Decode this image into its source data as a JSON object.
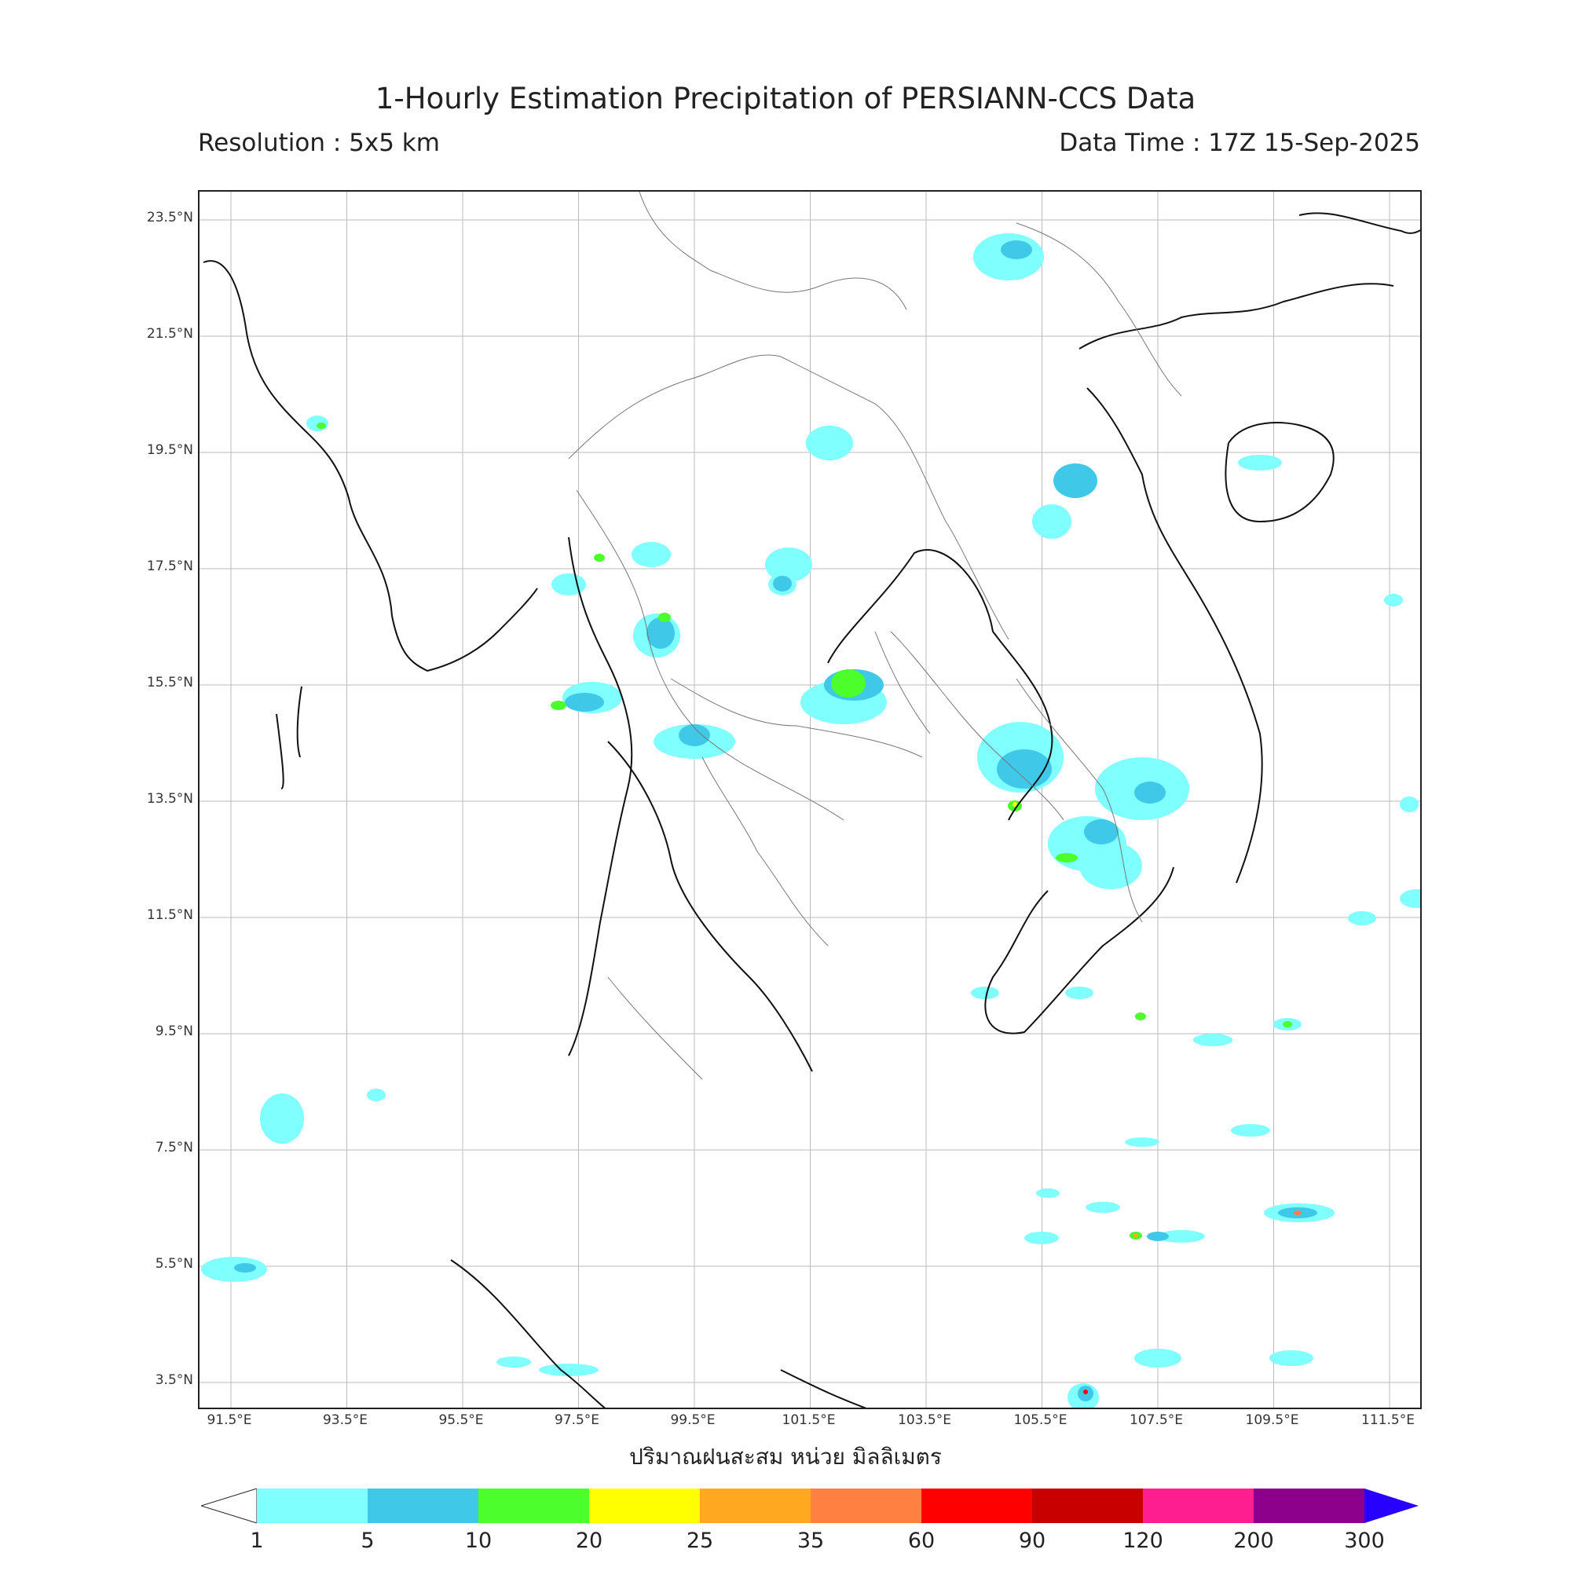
{
  "header": {
    "title": "1-Hourly Estimation Precipitation of PERSIANN-CCS Data",
    "resolution": "Resolution : 5x5 km",
    "data_time": "Data Time : 17Z 15-Sep-2025"
  },
  "map": {
    "lat_labels": [
      "23.5°N",
      "21.5°N",
      "19.5°N",
      "17.5°N",
      "15.5°N",
      "13.5°N",
      "11.5°N",
      "9.5°N",
      "7.5°N",
      "5.5°N",
      "3.5°N"
    ],
    "lon_labels": [
      "91.5°E",
      "93.5°E",
      "95.5°E",
      "97.5°E",
      "99.5°E",
      "101.5°E",
      "103.5°E",
      "105.5°E",
      "107.5°E",
      "109.5°E",
      "111.5°E"
    ],
    "unit_label": "ปริมาณฝนสะสม หน่วย มิลลิเมตร"
  },
  "legend": {
    "ticks": [
      "1",
      "5",
      "10",
      "20",
      "25",
      "35",
      "60",
      "90",
      "120",
      "200",
      "300"
    ],
    "colors": [
      "#80ffff",
      "#40c8e8",
      "#4cff2c",
      "#ffff00",
      "#ffa820",
      "#ff8040",
      "#ff0000",
      "#c80000",
      "#ff1e90",
      "#8c008c"
    ],
    "under_color": "#ffffff",
    "over_color": "#2800ff"
  }
}
